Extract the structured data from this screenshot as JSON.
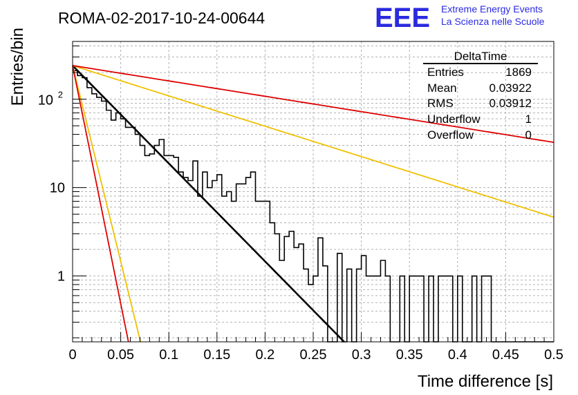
{
  "run_title": "ROMA-02-2017-10-24-00644",
  "logo": {
    "mark": "EEE",
    "line1": "Extreme Energy Events",
    "line2": "La Scienza nelle Scuole",
    "color": "#2a2ae0"
  },
  "stats": {
    "name": "DeltaTime",
    "rows": [
      {
        "label": "Entries",
        "value": "1869"
      },
      {
        "label": "Mean",
        "value": "0.03922"
      },
      {
        "label": "RMS",
        "value": "0.03912"
      },
      {
        "label": "Underflow",
        "value": "1"
      },
      {
        "label": "Overflow",
        "value": "0"
      }
    ]
  },
  "chart_data": {
    "type": "line",
    "title": "ROMA-02-2017-10-24-00644",
    "xlabel": "Time difference [s]",
    "ylabel": "Entries/bin",
    "xlim": [
      0,
      0.5
    ],
    "ylim": [
      0.18,
      450
    ],
    "yscale": "log",
    "grid": true,
    "x_ticks": [
      "0",
      "0.05",
      "0.1",
      "0.15",
      "0.2",
      "0.25",
      "0.3",
      "0.35",
      "0.4",
      "0.45",
      "0.5"
    ],
    "y_ticks": [
      "1",
      "10",
      "10^2"
    ],
    "histogram": {
      "bin_width": 0.005,
      "x_start": 0,
      "counts": [
        210,
        185,
        175,
        135,
        115,
        105,
        95,
        75,
        58,
        70,
        60,
        48,
        48,
        40,
        30,
        23,
        24,
        30,
        35,
        23,
        23,
        22,
        15,
        13,
        12,
        20,
        8,
        15,
        10,
        12,
        14,
        8,
        9,
        7,
        11,
        11,
        13,
        15,
        7,
        7,
        7,
        4,
        3,
        1.5,
        2.8,
        3.2,
        2.1,
        2.3,
        1.2,
        0.8,
        1.0,
        2.7,
        1.3,
        0.18,
        0.18,
        1.8,
        0.18,
        1.2,
        0.18,
        1.2,
        1.7,
        1.0,
        1.0,
        1.0,
        1.5,
        1.0,
        0.18,
        0.18,
        1.0,
        0.18,
        1.0,
        1.0,
        1.0,
        0.18,
        1.0,
        0.18,
        1.0,
        1.0,
        1.0,
        0.18,
        1.0,
        0.18,
        0.18,
        1.0,
        0.18,
        1.0,
        1.0,
        0.18,
        0.18,
        0.18,
        0.18,
        0.18,
        0.18,
        0.18,
        0.18,
        0.18,
        0.18,
        0.18,
        0.18,
        0.18
      ],
      "color": "#000000"
    },
    "series": [
      {
        "type": "exp",
        "amplitude": 240,
        "rate": 25.5,
        "color": "#000000"
      },
      {
        "type": "exp",
        "amplitude": 240,
        "rate": 7.9,
        "color": "#f0c000"
      },
      {
        "type": "exp",
        "amplitude": 240,
        "rate": 102,
        "color": "#f0c000"
      },
      {
        "type": "exp",
        "amplitude": 240,
        "rate": 4.0,
        "color": "#dd0000"
      },
      {
        "type": "exp",
        "amplitude": 240,
        "rate": 124,
        "color": "#dd0000"
      }
    ]
  }
}
